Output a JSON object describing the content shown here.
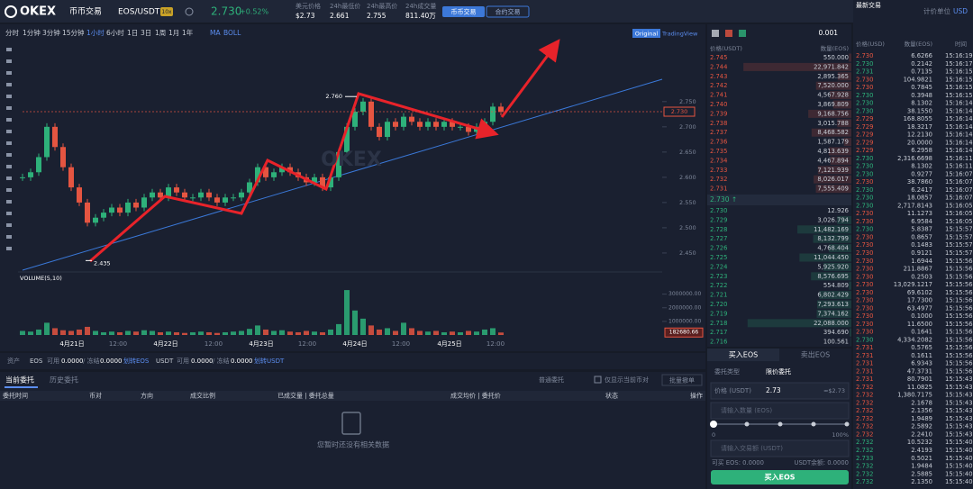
{
  "header": {
    "logo": "OKEX",
    "nav": "币币交易",
    "pair": "EOS/USDT",
    "leverage": "10x",
    "price": "2.730",
    "change": "+0.52%",
    "stats": [
      {
        "label": "美元价格",
        "value": "$2.73"
      },
      {
        "label": "24h最低价",
        "value": "2.661"
      },
      {
        "label": "24h最高价",
        "value": "2.755"
      },
      {
        "label": "24h成交量",
        "value": "811.40万"
      }
    ],
    "tabs": [
      "币币交易",
      "合约交易"
    ],
    "unit_label": "计价单位",
    "unit": "USD"
  },
  "toolbar": {
    "intervals": [
      "分时",
      "1分钟",
      "3分钟",
      "15分钟",
      "1小时",
      "6小时",
      "1日",
      "3日",
      "1周",
      "1月",
      "1年"
    ],
    "indicators": [
      "MA",
      "BOLL"
    ],
    "views": [
      "Original",
      "TradingView"
    ]
  },
  "chart_data": {
    "type": "candlestick",
    "watermark": "OKEX",
    "up_color": "#2eb17a",
    "down_color": "#e55541",
    "closes": [
      2.6,
      2.61,
      2.64,
      2.7,
      2.66,
      2.62,
      2.58,
      2.55,
      2.51,
      2.52,
      2.53,
      2.54,
      2.53,
      2.55,
      2.54,
      2.56,
      2.57,
      2.56,
      2.58,
      2.57,
      2.56,
      2.56,
      2.57,
      2.56,
      2.55,
      2.56,
      2.56,
      2.57,
      2.59,
      2.62,
      2.6,
      2.61,
      2.62,
      2.61,
      2.6,
      2.59,
      2.6,
      2.58,
      2.6,
      2.65,
      2.7,
      2.73,
      2.75,
      2.7,
      2.68,
      2.71,
      2.7,
      2.72,
      2.71,
      2.7,
      2.71,
      2.7,
      2.71,
      2.7,
      2.7,
      2.69,
      2.7,
      2.71,
      2.74,
      2.73
    ],
    "volumes": [
      300000,
      250000,
      400000,
      900000,
      500000,
      350000,
      300000,
      400000,
      600000,
      300000,
      200000,
      250000,
      200000,
      300000,
      250000,
      350000,
      300000,
      200000,
      250000,
      200000,
      150000,
      200000,
      250000,
      200000,
      150000,
      200000,
      250000,
      300000,
      450000,
      700000,
      400000,
      300000,
      350000,
      250000,
      200000,
      300000,
      250000,
      200000,
      400000,
      800000,
      3300000,
      1800000,
      1200000,
      700000,
      400000,
      500000,
      300000,
      900000,
      500000,
      300000,
      250000,
      300000,
      200000,
      250000,
      200000,
      300000,
      250000,
      400000,
      500000,
      182680.66
    ],
    "ylim": [
      2.416,
      2.871
    ],
    "yticks": [
      {
        "value": 2.45,
        "label": "2.450"
      },
      {
        "value": 2.5,
        "label": "2.500"
      },
      {
        "value": 2.55,
        "label": "2.550"
      },
      {
        "value": 2.6,
        "label": "2.600"
      },
      {
        "value": 2.65,
        "label": "2.650"
      },
      {
        "value": 2.7,
        "label": "2.700"
      },
      {
        "value": 2.75,
        "label": "2.750"
      }
    ],
    "last_price": {
      "value": 2.73,
      "label": "2.730"
    },
    "annotations": [
      {
        "value": 2.76,
        "label": "2.760"
      },
      2.435
    ],
    "volume_label": "VOLUME(5,10)",
    "volume_ylim": [
      0,
      4100000
    ],
    "volume_ticks": [
      {
        "value": 1000000,
        "label": "1000000.00"
      },
      {
        "value": 2000000,
        "label": "2000000.00"
      },
      {
        "value": 3000000,
        "label": "3000000.00"
      }
    ],
    "volume_last": {
      "value": 182680.66,
      "label": "182680.66"
    },
    "x_labels": [
      "4月21日",
      "12:00",
      "4月22日",
      "12:00",
      "4月23日",
      "12:00",
      "4月24日",
      "12:00",
      "4月25日",
      "12:00"
    ]
  },
  "orderbook": {
    "step": "0.001",
    "headers": [
      "价格(USDT)",
      "数量(EOS)"
    ],
    "asks": [
      [
        "2.745",
        "550.000"
      ],
      [
        "2.744",
        "22,971.842"
      ],
      [
        "2.743",
        "2,895.365"
      ],
      [
        "2.742",
        "7,520.000"
      ],
      [
        "2.741",
        "4,567.928"
      ],
      [
        "2.740",
        "3,869.809"
      ],
      [
        "2.739",
        "9,168.756"
      ],
      [
        "2.738",
        "3,015.788"
      ],
      [
        "2.737",
        "8,468.582"
      ],
      [
        "2.736",
        "1,587.179"
      ],
      [
        "2.735",
        "4,813.639"
      ],
      [
        "2.734",
        "4,467.894"
      ],
      [
        "2.733",
        "7,121.939"
      ],
      [
        "2.732",
        "8,026.017"
      ],
      [
        "2.731",
        "7,555.409"
      ]
    ],
    "last": "2.730 ↑",
    "bids": [
      [
        "2.730",
        "12.926"
      ],
      [
        "2.729",
        "3,026.794"
      ],
      [
        "2.728",
        "11,482.169"
      ],
      [
        "2.727",
        "8,132.799"
      ],
      [
        "2.726",
        "4,768.404"
      ],
      [
        "2.725",
        "11,044.450"
      ],
      [
        "2.724",
        "5,925.920"
      ],
      [
        "2.723",
        "8,576.695"
      ],
      [
        "2.722",
        "554.809"
      ],
      [
        "2.721",
        "6,802.429"
      ],
      [
        "2.720",
        "7,293.613"
      ],
      [
        "2.719",
        "7,374.162"
      ],
      [
        "2.718",
        "22,088.000"
      ],
      [
        "2.717",
        "394.690"
      ],
      [
        "2.716",
        "100.561"
      ]
    ]
  },
  "trades": {
    "title": "最新交易",
    "headers": [
      "价格(USD)",
      "数量(EOS)",
      "时间"
    ],
    "rows": [
      {
        "price": "2.730",
        "amount": "6.6266",
        "time": "15:16:19",
        "side": "sell"
      },
      {
        "price": "2.730",
        "amount": "0.2142",
        "time": "15:16:17",
        "side": "buy"
      },
      {
        "price": "2.731",
        "amount": "0.7135",
        "time": "15:16:15",
        "side": "buy"
      },
      {
        "price": "2.730",
        "amount": "104.9821",
        "time": "15:16:15",
        "side": "sell"
      },
      {
        "price": "2.730",
        "amount": "0.7845",
        "time": "15:16:15",
        "side": "sell"
      },
      {
        "price": "2.730",
        "amount": "0.3948",
        "time": "15:16:15",
        "side": "buy"
      },
      {
        "price": "2.730",
        "amount": "8.1302",
        "time": "15:16:14",
        "side": "buy"
      },
      {
        "price": "2.730",
        "amount": "38.1550",
        "time": "15:16:14",
        "side": "buy"
      },
      {
        "price": "2.729",
        "amount": "168.8055",
        "time": "15:16:14",
        "side": "sell"
      },
      {
        "price": "2.729",
        "amount": "18.3217",
        "time": "15:16:14",
        "side": "sell"
      },
      {
        "price": "2.729",
        "amount": "12.2130",
        "time": "15:16:14",
        "side": "sell"
      },
      {
        "price": "2.729",
        "amount": "20.0000",
        "time": "15:16:14",
        "side": "sell"
      },
      {
        "price": "2.729",
        "amount": "6.2958",
        "time": "15:16:14",
        "side": "sell"
      },
      {
        "price": "2.730",
        "amount": "2,316.6698",
        "time": "15:16:11",
        "side": "buy"
      },
      {
        "price": "2.730",
        "amount": "8.1302",
        "time": "15:16:11",
        "side": "buy"
      },
      {
        "price": "2.730",
        "amount": "0.9277",
        "time": "15:16:07",
        "side": "buy"
      },
      {
        "price": "2.730",
        "amount": "38.7860",
        "time": "15:16:07",
        "side": "sell"
      },
      {
        "price": "2.730",
        "amount": "6.2417",
        "time": "15:16:07",
        "side": "buy"
      },
      {
        "price": "2.730",
        "amount": "18.0857",
        "time": "15:16:07",
        "side": "buy"
      },
      {
        "price": "2.730",
        "amount": "2,717.8143",
        "time": "15:16:05",
        "side": "buy"
      },
      {
        "price": "2.730",
        "amount": "11.1273",
        "time": "15:16:05",
        "side": "sell"
      },
      {
        "price": "2.730",
        "amount": "6.9584",
        "time": "15:16:05",
        "side": "sell"
      },
      {
        "price": "2.730",
        "amount": "5.8387",
        "time": "15:15:57",
        "side": "buy"
      },
      {
        "price": "2.730",
        "amount": "0.8657",
        "time": "15:15:57",
        "side": "sell"
      },
      {
        "price": "2.730",
        "amount": "0.1483",
        "time": "15:15:57",
        "side": "sell"
      },
      {
        "price": "2.730",
        "amount": "0.9121",
        "time": "15:15:57",
        "side": "sell"
      },
      {
        "price": "2.730",
        "amount": "1.6944",
        "time": "15:15:56",
        "side": "sell"
      },
      {
        "price": "2.730",
        "amount": "211.8867",
        "time": "15:15:56",
        "side": "sell"
      },
      {
        "price": "2.730",
        "amount": "0.2503",
        "time": "15:15:56",
        "side": "sell"
      },
      {
        "price": "2.730",
        "amount": "13,029.1217",
        "time": "15:15:56",
        "side": "sell"
      },
      {
        "price": "2.730",
        "amount": "69.6102",
        "time": "15:15:56",
        "side": "sell"
      },
      {
        "price": "2.730",
        "amount": "17.7300",
        "time": "15:15:56",
        "side": "sell"
      },
      {
        "price": "2.730",
        "amount": "63.4977",
        "time": "15:15:56",
        "side": "sell"
      },
      {
        "price": "2.730",
        "amount": "0.1000",
        "time": "15:15:56",
        "side": "sell"
      },
      {
        "price": "2.730",
        "amount": "11.6500",
        "time": "15:15:56",
        "side": "sell"
      },
      {
        "price": "2.730",
        "amount": "0.1641",
        "time": "15:15:56",
        "side": "sell"
      },
      {
        "price": "2.730",
        "amount": "4,334.2082",
        "time": "15:15:56",
        "side": "buy"
      },
      {
        "price": "2.731",
        "amount": "0.5765",
        "time": "15:15:56",
        "side": "sell"
      },
      {
        "price": "2.731",
        "amount": "0.1611",
        "time": "15:15:56",
        "side": "sell"
      },
      {
        "price": "2.731",
        "amount": "6.9343",
        "time": "15:15:56",
        "side": "sell"
      },
      {
        "price": "2.731",
        "amount": "47.3731",
        "time": "15:15:56",
        "side": "sell"
      },
      {
        "price": "2.731",
        "amount": "80.7901",
        "time": "15:15:43",
        "side": "sell"
      },
      {
        "price": "2.732",
        "amount": "11.0825",
        "time": "15:15:43",
        "side": "sell"
      },
      {
        "price": "2.732",
        "amount": "1,380.7175",
        "time": "15:15:43",
        "side": "sell"
      },
      {
        "price": "2.732",
        "amount": "2.1678",
        "time": "15:15:43",
        "side": "sell"
      },
      {
        "price": "2.732",
        "amount": "2.1356",
        "time": "15:15:43",
        "side": "sell"
      },
      {
        "price": "2.732",
        "amount": "1.9489",
        "time": "15:15:43",
        "side": "sell"
      },
      {
        "price": "2.732",
        "amount": "2.5892",
        "time": "15:15:43",
        "side": "sell"
      },
      {
        "price": "2.732",
        "amount": "2.2410",
        "time": "15:15:43",
        "side": "sell"
      },
      {
        "price": "2.732",
        "amount": "10.5232",
        "time": "15:15:40",
        "side": "buy"
      },
      {
        "price": "2.732",
        "amount": "2.4193",
        "time": "15:15:40",
        "side": "buy"
      },
      {
        "price": "2.733",
        "amount": "0.5021",
        "time": "15:15:40",
        "side": "buy"
      },
      {
        "price": "2.732",
        "amount": "1.9484",
        "time": "15:15:40",
        "side": "buy"
      },
      {
        "price": "2.732",
        "amount": "2.5885",
        "time": "15:15:40",
        "side": "buy"
      },
      {
        "price": "2.732",
        "amount": "2.1350",
        "time": "15:15:40",
        "side": "buy"
      }
    ]
  },
  "assets": {
    "label": "资产",
    "eos": {
      "coin": "EOS",
      "avail_label": "可用",
      "avail": "0.0000",
      "frozen_label": "/ 冻结",
      "frozen": "0.0000",
      "transfer": "划转EOS"
    },
    "usdt": {
      "coin": "USDT",
      "avail_label": "可用",
      "avail": "0.0000",
      "frozen_label": "/ 冻结",
      "frozen": "0.0000",
      "transfer": "划转USDT"
    }
  },
  "orders": {
    "tabs": [
      "当前委托",
      "历史委托"
    ],
    "filter": "普通委托",
    "checkbox": "仅显示当前币对",
    "cancel_all": "批量撤单",
    "columns": [
      "委托时间",
      "币对",
      "方向",
      "成交比例",
      "已成交量 | 委托总量",
      "成交均价 | 委托价",
      "状态",
      "操作"
    ],
    "empty": "您暂时还没有相关数据"
  },
  "trade_form": {
    "tabs": [
      "买入EOS",
      "卖出EOS"
    ],
    "type_label": "委托类型",
    "type": "限价委托",
    "price_label": "价格 (USDT)",
    "price": "2.73",
    "price_usd": "≈$2.73",
    "amount_placeholder": "请输入数量 (EOS)",
    "slider_min": "0",
    "slider_max": "100%",
    "total_placeholder": "请输入交易额 (USDT)",
    "can_buy": "可买 EOS: 0.0000",
    "balance": "USDT余额: 0.0000",
    "submit": "买入EOS"
  }
}
